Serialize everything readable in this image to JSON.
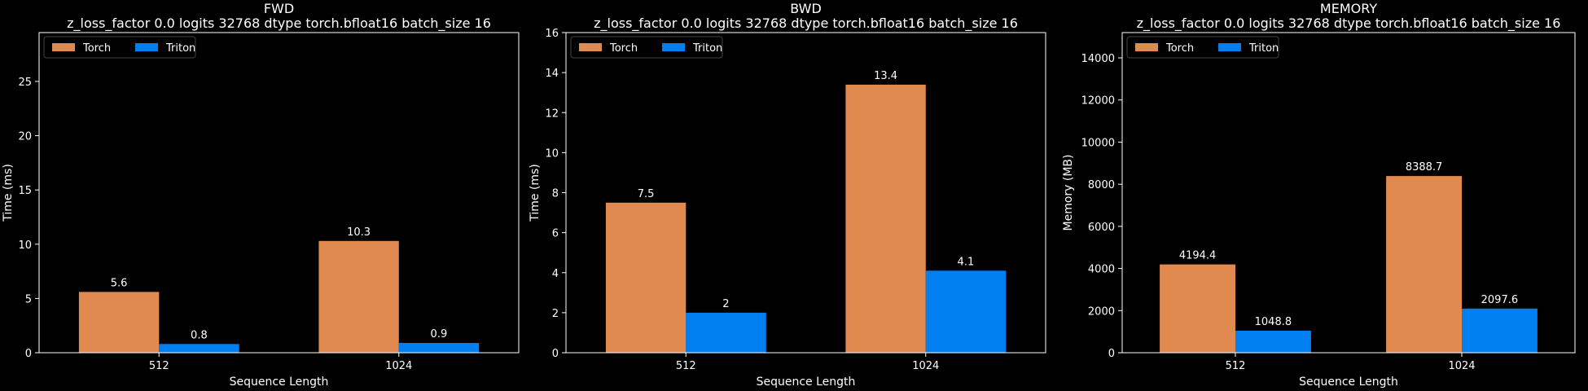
{
  "colors": {
    "background": "#000000",
    "torch": "#E08A50",
    "triton": "#0080F0",
    "axes": "#ffffff"
  },
  "chart_data": [
    {
      "type": "bar",
      "title": "FWD",
      "subtitle": "z_loss_factor 0.0 logits 32768 dtype torch.bfloat16 batch_size 16",
      "xlabel": "Sequence Length",
      "ylabel": "Time (ms)",
      "ylim": [
        0,
        29.5
      ],
      "yticks": [
        0,
        5,
        10,
        15,
        20,
        25
      ],
      "categories": [
        "512",
        "1024"
      ],
      "series": [
        {
          "name": "Torch",
          "values": [
            5.6,
            10.3
          ],
          "labels": [
            "5.6",
            "10.3"
          ]
        },
        {
          "name": "Triton",
          "values": [
            0.8,
            0.9
          ],
          "labels": [
            "0.8",
            "0.9"
          ]
        }
      ],
      "legend": "top-left",
      "grid": false
    },
    {
      "type": "bar",
      "title": "BWD",
      "subtitle": "z_loss_factor 0.0 logits 32768 dtype torch.bfloat16 batch_size 16",
      "xlabel": "Sequence Length",
      "ylabel": "Time (ms)",
      "ylim": [
        0,
        16
      ],
      "yticks": [
        0,
        2,
        4,
        6,
        8,
        10,
        12,
        14,
        16
      ],
      "categories": [
        "512",
        "1024"
      ],
      "series": [
        {
          "name": "Torch",
          "values": [
            7.5,
            13.4
          ],
          "labels": [
            "7.5",
            "13.4"
          ]
        },
        {
          "name": "Triton",
          "values": [
            2,
            4.1
          ],
          "labels": [
            "2",
            "4.1"
          ]
        }
      ],
      "legend": "top-left",
      "grid": false
    },
    {
      "type": "bar",
      "title": "MEMORY",
      "subtitle": "z_loss_factor 0.0 logits 32768 dtype torch.bfloat16 batch_size 16",
      "xlabel": "Sequence Length",
      "ylabel": "Memory (MB)",
      "ylim": [
        0,
        15200
      ],
      "yticks": [
        0,
        2000,
        4000,
        6000,
        8000,
        10000,
        12000,
        14000
      ],
      "categories": [
        "512",
        "1024"
      ],
      "series": [
        {
          "name": "Torch",
          "values": [
            4194.4,
            8388.7
          ],
          "labels": [
            "4194.4",
            "8388.7"
          ]
        },
        {
          "name": "Triton",
          "values": [
            1048.8,
            2097.6
          ],
          "labels": [
            "1048.8",
            "2097.6"
          ]
        }
      ],
      "legend": "top-left",
      "grid": false
    }
  ]
}
